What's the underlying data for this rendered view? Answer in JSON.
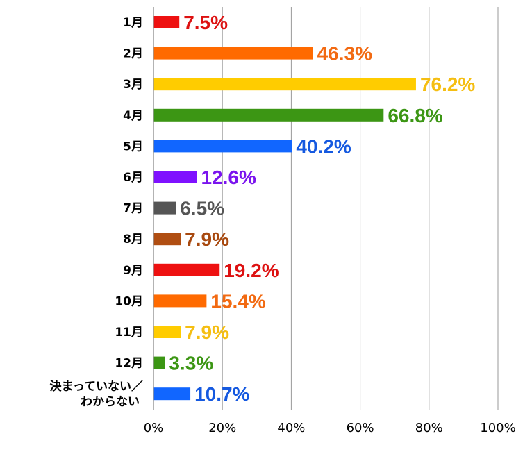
{
  "chart_data": {
    "type": "bar",
    "orientation": "horizontal",
    "categories": [
      "1月",
      "2月",
      "3月",
      "4月",
      "5月",
      "6月",
      "7月",
      "8月",
      "9月",
      "10月",
      "11月",
      "12月",
      "決まっていない／\nわからない"
    ],
    "values": [
      7.5,
      46.3,
      76.2,
      66.8,
      40.2,
      12.6,
      6.5,
      7.9,
      19.2,
      15.4,
      7.9,
      3.3,
      10.7
    ],
    "value_labels": [
      "7.5%",
      "46.3%",
      "76.2%",
      "66.8%",
      "40.2%",
      "12.6%",
      "6.5%",
      "7.9%",
      "19.2%",
      "15.4%",
      "7.9%",
      "3.3%",
      "10.7%"
    ],
    "colors": [
      "#ee1111",
      "#ff6a00",
      "#ffcc00",
      "#3c9614",
      "#1166ff",
      "#7f11ff",
      "#555555",
      "#b04e12",
      "#ee1111",
      "#ff6a00",
      "#ffcc00",
      "#3c9614",
      "#1166ff"
    ],
    "label_colors": [
      "#dd1111",
      "#f26a12",
      "#f5be12",
      "#3c9614",
      "#1559e0",
      "#7a14ee",
      "#555555",
      "#a8490f",
      "#dd1111",
      "#f26a12",
      "#f5be12",
      "#3c9614",
      "#1559e0"
    ],
    "xlim": [
      0,
      100
    ],
    "x_ticks": [
      0,
      20,
      40,
      60,
      80,
      100
    ],
    "x_tick_labels": [
      "0%",
      "20%",
      "40%",
      "60%",
      "80%",
      "100%"
    ],
    "title": "",
    "xlabel": "",
    "ylabel": "",
    "grid": true,
    "legend": "none"
  }
}
